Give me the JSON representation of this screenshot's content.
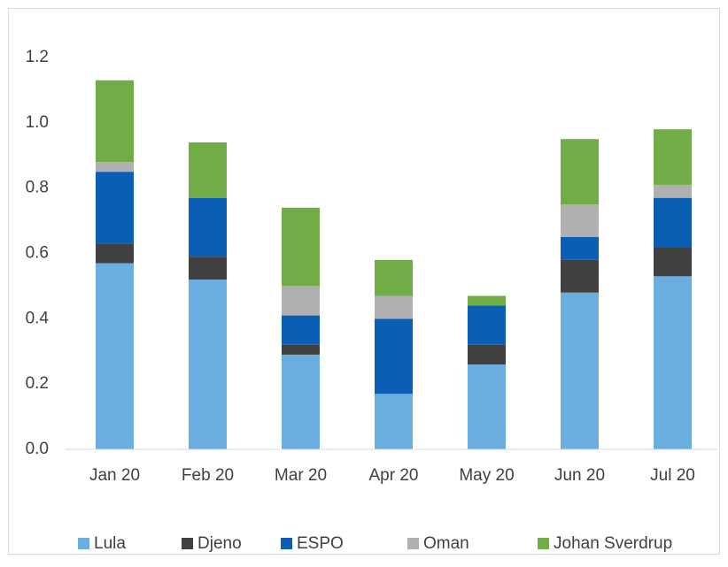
{
  "chart_data": {
    "type": "stacked_bar",
    "categories": [
      "Jan 20",
      "Feb 20",
      "Mar 20",
      "Apr 20",
      "May 20",
      "Jun 20",
      "Jul 20"
    ],
    "series": [
      {
        "name": "Lula",
        "color": "#6aaee0",
        "values": [
          0.57,
          0.52,
          0.29,
          0.17,
          0.26,
          0.48,
          0.53
        ]
      },
      {
        "name": "Djeno",
        "color": "#404040",
        "values": [
          0.06,
          0.07,
          0.03,
          0,
          0.06,
          0.1,
          0.09
        ]
      },
      {
        "name": "ESPO",
        "color": "#0a5fb4",
        "values": [
          0.22,
          0.18,
          0.09,
          0.23,
          0.12,
          0.07,
          0.15
        ]
      },
      {
        "name": "Oman",
        "color": "#b0b0b0",
        "values": [
          0.03,
          0,
          0.09,
          0.07,
          0,
          0.1,
          0.04
        ]
      },
      {
        "name": "Johan Sverdrup",
        "color": "#70ad47",
        "values": [
          0.25,
          0.17,
          0.24,
          0.11,
          0.03,
          0.2,
          0.17
        ]
      }
    ],
    "ylim": [
      0,
      1.3
    ],
    "yticks": [
      {
        "value": 0,
        "label": "0.0"
      },
      0.2,
      0.4,
      0.6,
      0.8,
      {
        "value": 1,
        "label": "1.0"
      },
      1.2
    ],
    "grid": false,
    "legend": "bottom"
  }
}
